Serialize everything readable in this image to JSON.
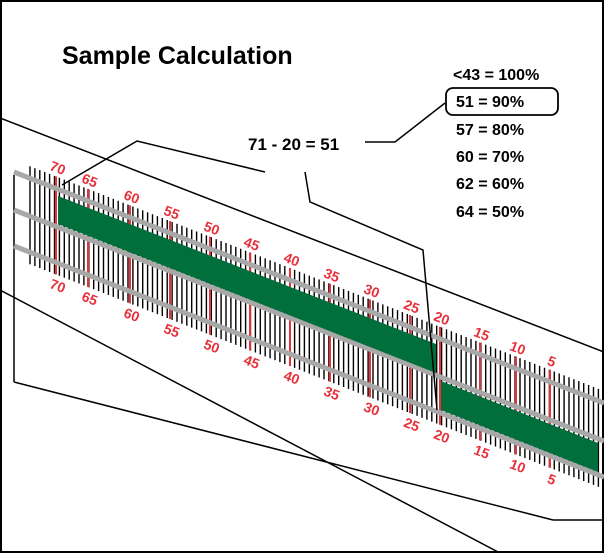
{
  "title": "Sample Calculation",
  "equation": "71 - 20 = 51",
  "table": [
    {
      "text": "<43 = 100%",
      "highlight": false
    },
    {
      "text": "51 = 90%",
      "highlight": true
    },
    {
      "text": "57 = 80%",
      "highlight": false
    },
    {
      "text": "60 = 70%",
      "highlight": false
    },
    {
      "text": "62 = 60%",
      "highlight": false
    },
    {
      "text": "64 = 50%",
      "highlight": false
    }
  ],
  "scale_labels": [
    "70",
    "65",
    "60",
    "55",
    "50",
    "45",
    "40",
    "35",
    "30",
    "25",
    "20",
    "15",
    "10",
    "5"
  ],
  "colors": {
    "scale_red": "#e8303a",
    "rail_gray": "#a8a8a8",
    "bar_green": "#006f3c",
    "line": "#000000"
  }
}
